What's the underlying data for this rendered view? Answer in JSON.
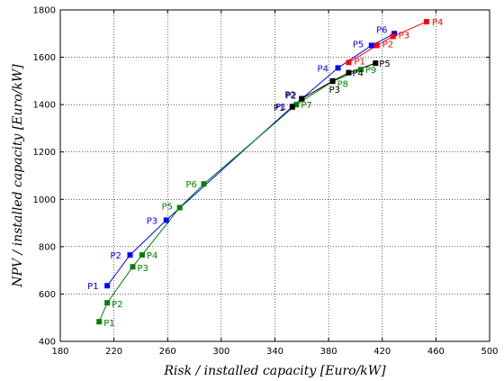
{
  "chart_data": {
    "type": "line",
    "xlabel": "Risk / installed capacity [Euro/kW]",
    "ylabel": "NPV / installed capacity [Euro/kW]",
    "xlim": [
      180,
      500
    ],
    "ylim": [
      400,
      1800
    ],
    "xticks": [
      "180",
      "220",
      "260",
      "300",
      "340",
      "380",
      "420",
      "460",
      "500"
    ],
    "yticks": [
      "400",
      "600",
      "800",
      "1000",
      "1200",
      "1400",
      "1600",
      "1800"
    ],
    "grid": true,
    "legend": "none",
    "series": [
      {
        "color": "#0000ff",
        "points": [
          {
            "label": "P1",
            "x": 215,
            "y": 635
          },
          {
            "label": "P2",
            "x": 232,
            "y": 765
          },
          {
            "label": "P3",
            "x": 259,
            "y": 912
          },
          {
            "label": "P1",
            "x": 353,
            "y": 1392
          },
          {
            "label": "P2",
            "x": 360,
            "y": 1425
          },
          {
            "label": "P4",
            "x": 387,
            "y": 1555
          },
          {
            "label": "P5",
            "x": 412,
            "y": 1650
          },
          {
            "label": "P6",
            "x": 429,
            "y": 1700
          }
        ]
      },
      {
        "color": "#008000",
        "points": [
          {
            "label": "P1",
            "x": 209,
            "y": 483
          },
          {
            "label": "P2",
            "x": 215,
            "y": 563
          },
          {
            "label": "P3",
            "x": 234,
            "y": 715
          },
          {
            "label": "P4",
            "x": 241,
            "y": 765
          },
          {
            "label": "P5",
            "x": 269,
            "y": 965
          },
          {
            "label": "P6",
            "x": 287,
            "y": 1065
          },
          {
            "label": "P7",
            "x": 356,
            "y": 1400
          },
          {
            "label": "P8",
            "x": 383,
            "y": 1498
          },
          {
            "label": "P9",
            "x": 404,
            "y": 1548
          }
        ]
      },
      {
        "color": "#ff0000",
        "points": [
          {
            "label": "P1",
            "x": 395,
            "y": 1578
          },
          {
            "label": "P2",
            "x": 416,
            "y": 1650
          },
          {
            "label": "P3",
            "x": 428,
            "y": 1688
          },
          {
            "label": "P4",
            "x": 453,
            "y": 1750
          }
        ]
      },
      {
        "color": "#000000",
        "points": [
          {
            "label": "P1",
            "x": 353,
            "y": 1390
          },
          {
            "label": "P2",
            "x": 360,
            "y": 1425
          },
          {
            "label": "P3",
            "x": 383,
            "y": 1500
          },
          {
            "label": "P4",
            "x": 395,
            "y": 1535
          },
          {
            "label": "P5",
            "x": 415,
            "y": 1575
          }
        ]
      }
    ]
  }
}
